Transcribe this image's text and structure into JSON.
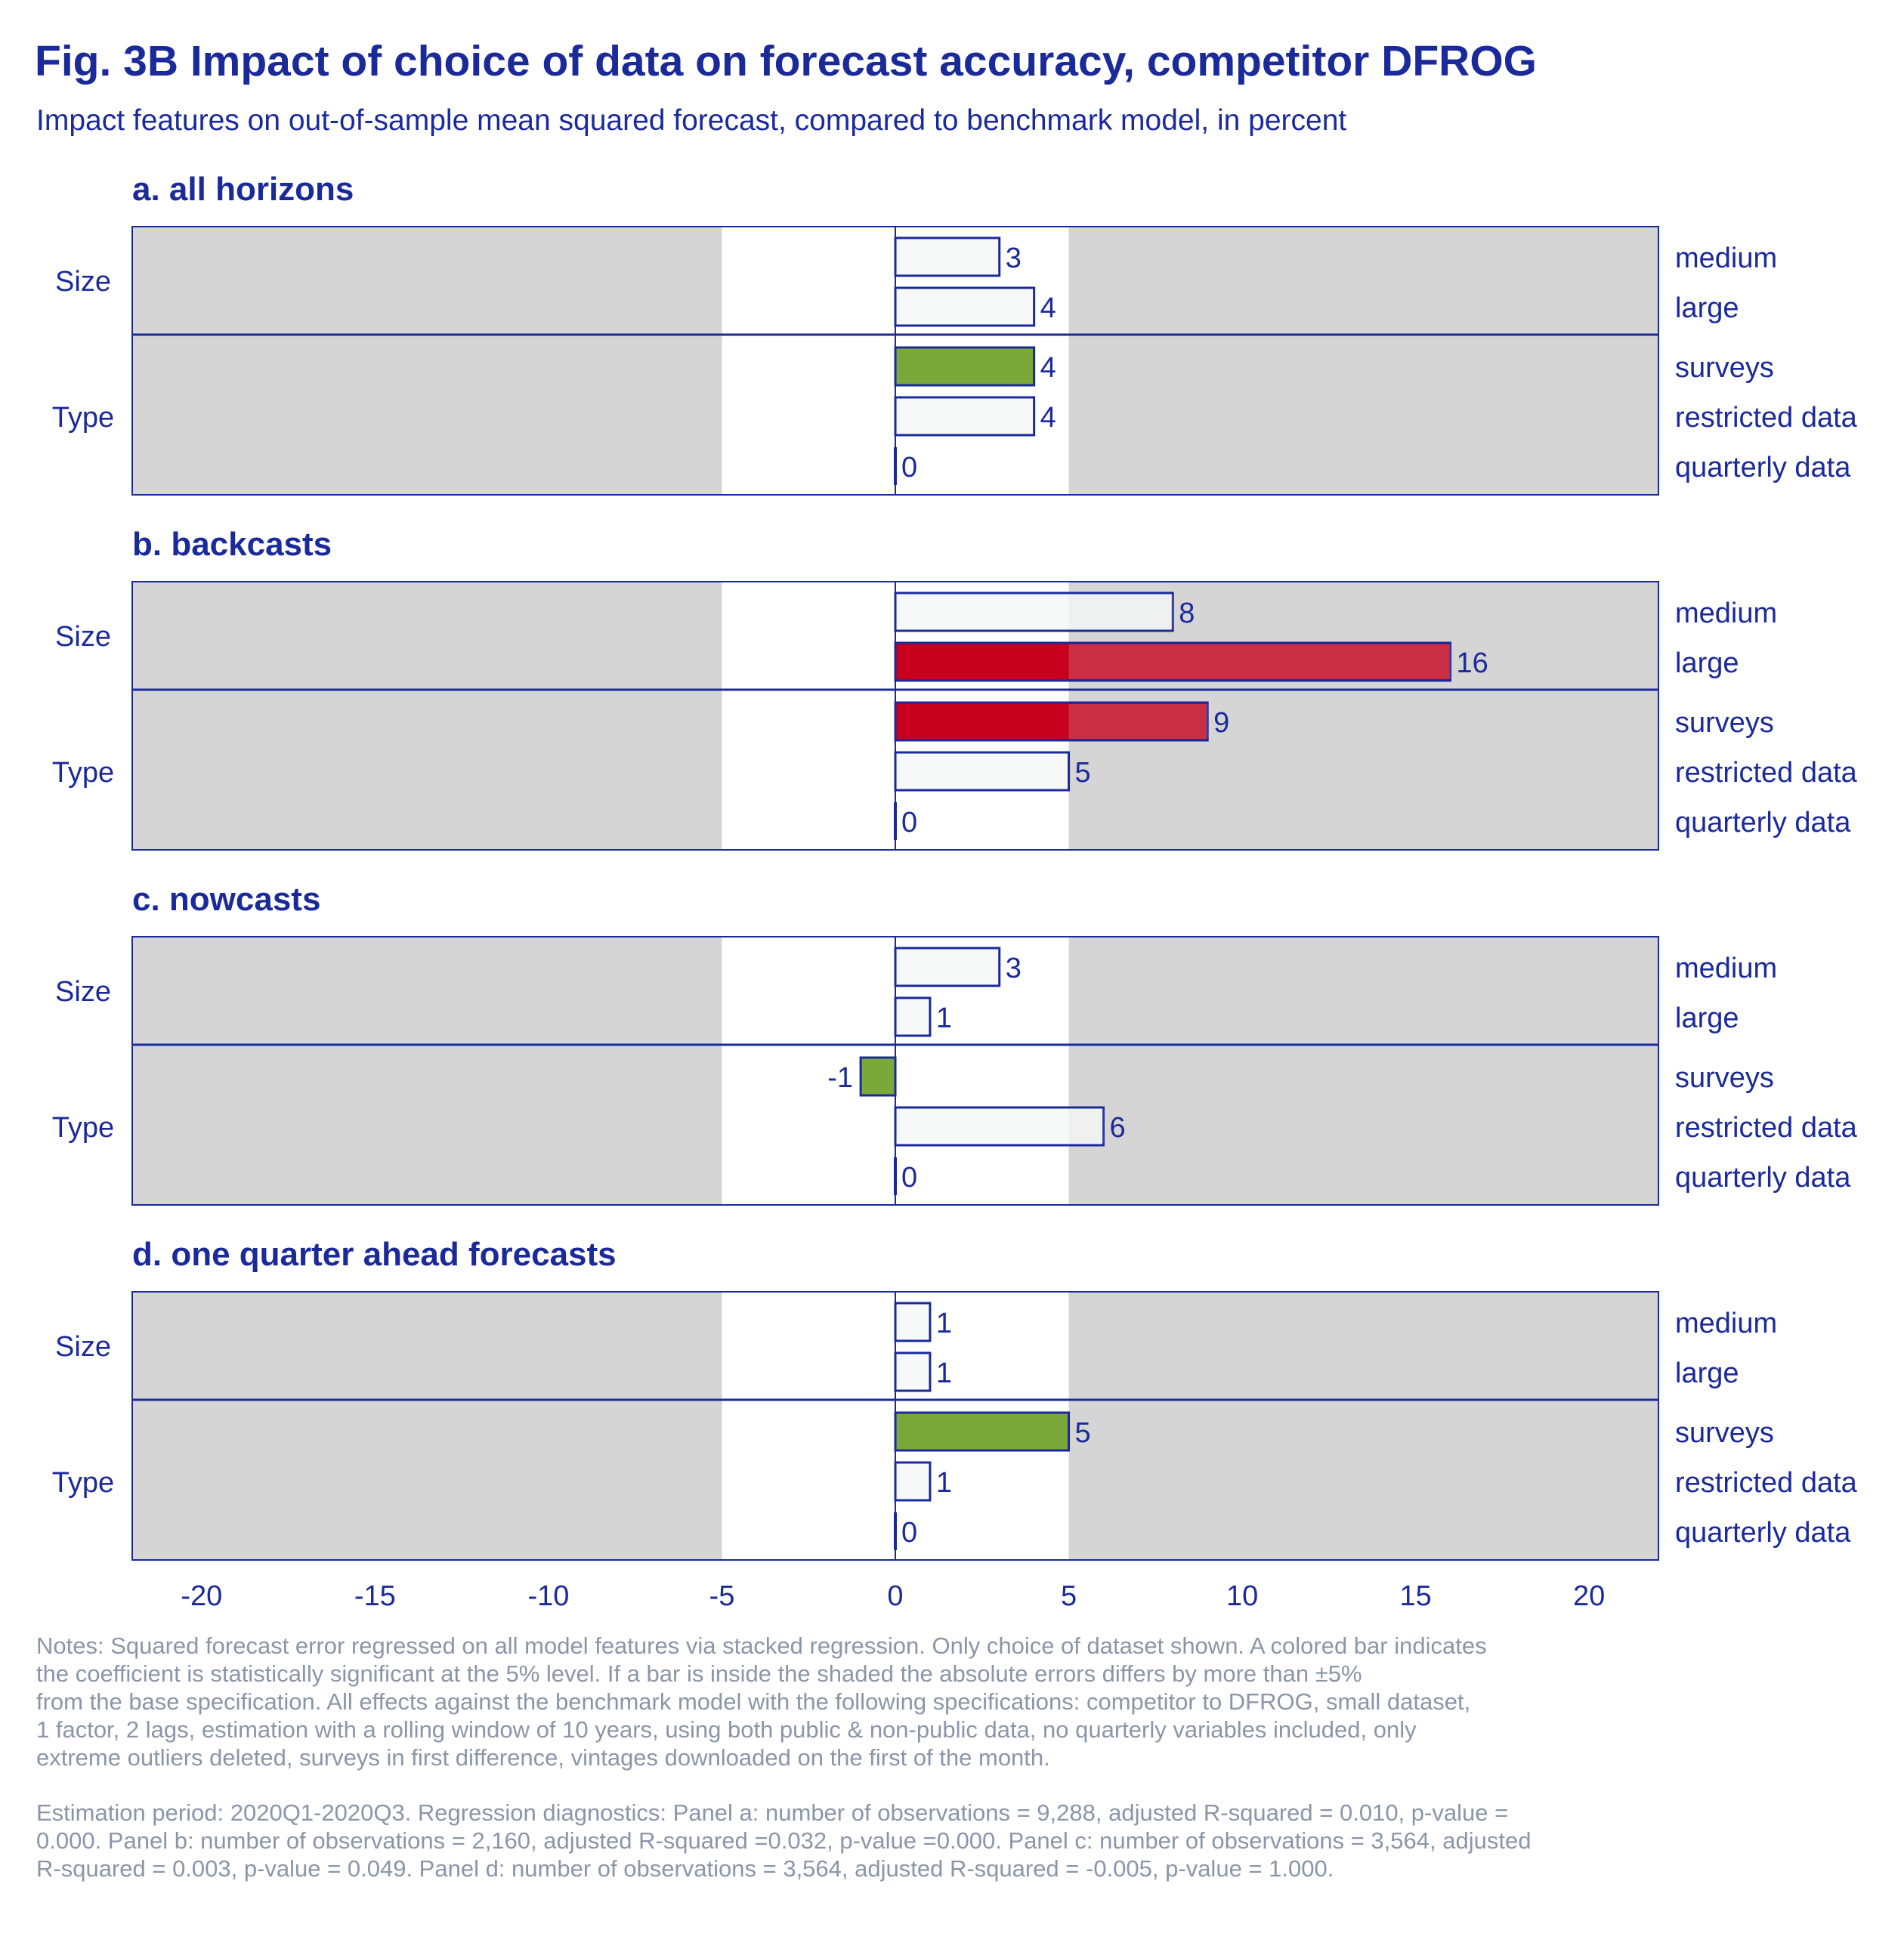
{
  "title": "Fig. 3B Impact of choice of data on forecast accuracy, competitor DFROG",
  "subtitle": "Impact features on out-of-sample mean squared forecast, compared to benchmark model, in percent",
  "colors": {
    "text": "#1b2a9b",
    "shade": "#d5d5d5",
    "bar_fill": "#f7f9f9",
    "bar_stroke": "#1b2a9b",
    "significant_green": "#7ba83a",
    "significant_red": "#c8001e",
    "notes": "#8a96a8"
  },
  "chart_data": {
    "type": "bar",
    "orientation": "horizontal",
    "xlim": [
      -22,
      22
    ],
    "x_ticks": [
      -20,
      -15,
      -10,
      -5,
      0,
      5,
      10,
      15,
      20
    ],
    "x_tick_labels": [
      "-20",
      "-15",
      "-10",
      "-5",
      "0",
      "5",
      "10",
      "15",
      "20"
    ],
    "shaded_region": "|x| > 5",
    "groups": [
      {
        "label": "Size",
        "categories": [
          "medium",
          "large"
        ]
      },
      {
        "label": "Type",
        "categories": [
          "surveys",
          "restricted data",
          "quarterly data"
        ]
      }
    ],
    "categories": [
      "medium",
      "large",
      "surveys",
      "restricted data",
      "quarterly data"
    ],
    "panels": [
      {
        "title": "a. all horizons",
        "values": [
          3,
          4,
          4,
          4,
          0
        ],
        "labels": [
          "3",
          "4",
          "4",
          "4",
          "0"
        ],
        "significance": [
          "none",
          "none",
          "green",
          "none",
          "none"
        ]
      },
      {
        "title": "b. backcasts",
        "values": [
          8,
          16,
          9,
          5,
          0
        ],
        "labels": [
          "8",
          "16",
          "9",
          "5",
          "0"
        ],
        "significance": [
          "none",
          "red",
          "red",
          "none",
          "none"
        ]
      },
      {
        "title": "c. nowcasts",
        "values": [
          3,
          1,
          -1,
          6,
          0
        ],
        "labels": [
          "3",
          "1",
          "-1",
          "6",
          "0"
        ],
        "significance": [
          "none",
          "none",
          "green",
          "none",
          "none"
        ]
      },
      {
        "title": "d. one quarter ahead forecasts",
        "values": [
          1,
          1,
          5,
          1,
          0
        ],
        "labels": [
          "1",
          "1",
          "5",
          "1",
          "0"
        ],
        "significance": [
          "none",
          "none",
          "green",
          "none",
          "none"
        ]
      }
    ]
  },
  "notes": {
    "paragraph1": "Notes: Squared forecast error regressed on all model features via stacked regression. Only choice of dataset shown. A colored bar indicates\nthe coefficient is statistically significant at the 5% level. If a bar is inside the shaded the absolute errors differs by more than ±5%\nfrom the base specification. All effects against the benchmark model with the following specifications: competitor to DFROG, small dataset,\n1 factor, 2 lags, estimation with a rolling window of 10 years, using both public & non-public data, no quarterly variables included, only\nextreme outliers deleted, surveys in first difference, vintages downloaded on the first of the month.",
    "paragraph2": " Estimation period: 2020Q1-2020Q3. Regression diagnostics: Panel a: number of observations = 9,288, adjusted R-squared = 0.010, p-value =\n0.000. Panel b: number of observations = 2,160, adjusted R-squared =0.032, p-value =0.000. Panel c: number of observations = 3,564, adjusted\nR-squared = 0.003, p-value = 0.049. Panel d: number of observations = 3,564, adjusted R-squared = -0.005, p-value = 1.000."
  }
}
